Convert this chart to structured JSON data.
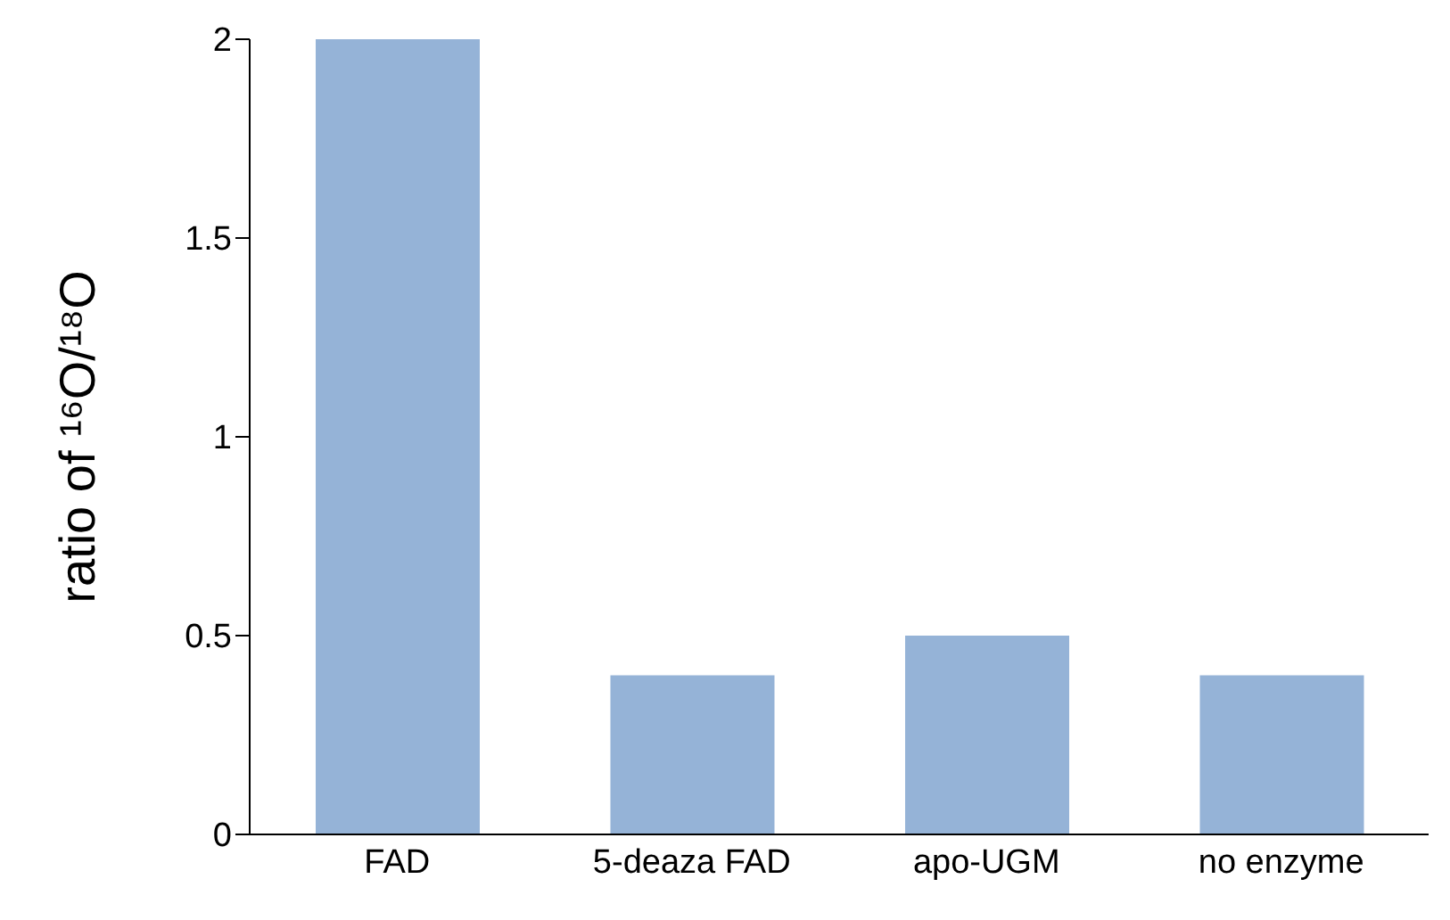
{
  "chart_data": {
    "type": "bar",
    "ylabel": "ratio of ¹⁶O/¹⁸O",
    "categories": [
      "FAD",
      "5-deaza FAD",
      "apo-UGM",
      "no enzyme"
    ],
    "values": [
      2.0,
      0.4,
      0.5,
      0.4
    ],
    "color": "#95b3d7",
    "ylim": [
      0,
      2
    ],
    "yticks": [
      0,
      0.5,
      1,
      1.5,
      2
    ],
    "grid": false,
    "legend": false
  }
}
